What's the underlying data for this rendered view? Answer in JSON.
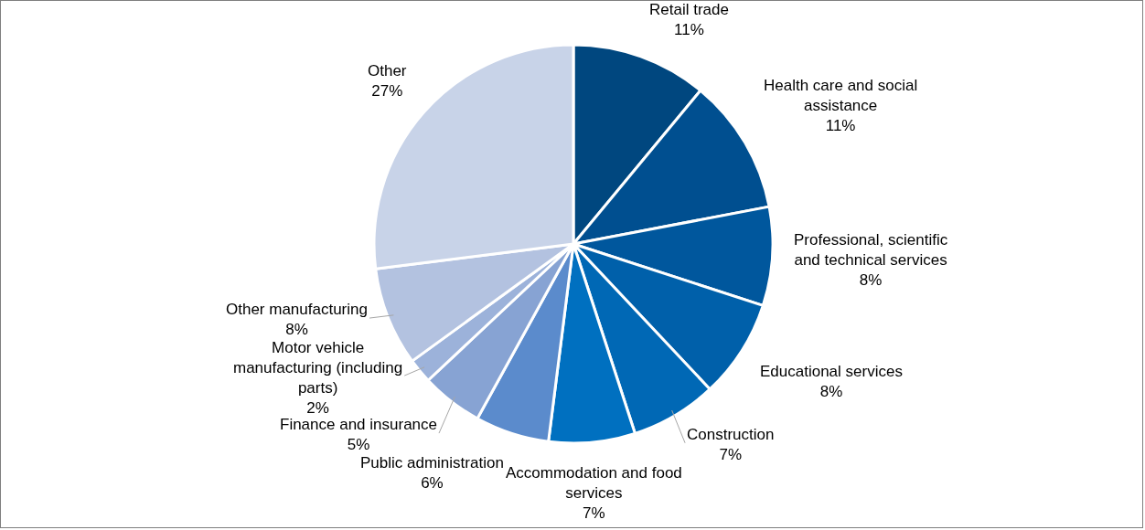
{
  "chart_data": {
    "type": "pie",
    "categories": [
      "Retail trade",
      "Health care and social assistance",
      "Professional, scientific and technical services",
      "Educational services",
      "Construction",
      "Accommodation and food services",
      "Public administration",
      "Finance and insurance",
      "Motor vehicle manufacturing (including parts)",
      "Other manufacturing",
      "Other"
    ],
    "values": [
      11,
      11,
      8,
      8,
      7,
      7,
      6,
      5,
      2,
      8,
      27
    ],
    "value_labels": [
      "11%",
      "11%",
      "8%",
      "8%",
      "7%",
      "7%",
      "6%",
      "5%",
      "2%",
      "8%",
      "27%"
    ],
    "colors": [
      "#00477f",
      "#004f90",
      "#00579d",
      "#0060aa",
      "#0068b5",
      "#0070c0",
      "#5b8bcc",
      "#87a3d3",
      "#9cb2da",
      "#b3c2e0",
      "#c8d3e8"
    ],
    "legend": false
  }
}
